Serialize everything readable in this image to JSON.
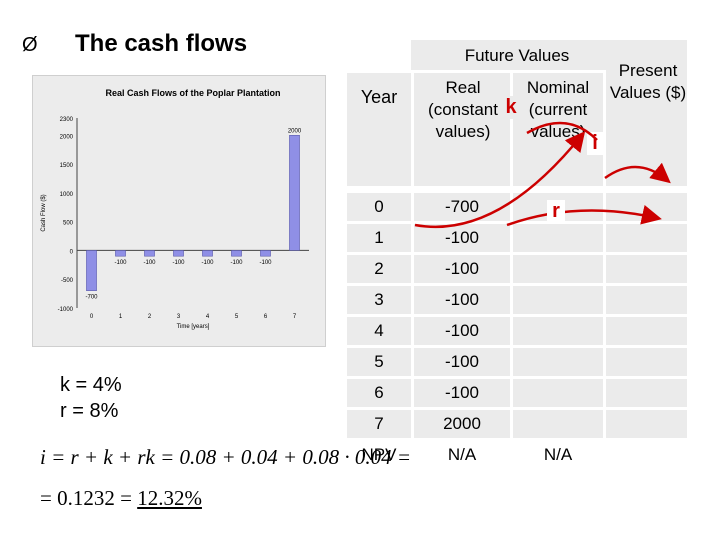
{
  "slide": {
    "bullet": "Ø",
    "title": "The cash flows",
    "k_label": "k = 4%",
    "r_label": "r = 8%"
  },
  "table": {
    "future_values_header": "Future Values",
    "present_values_header": "Present Values ($)",
    "col_year": "Year",
    "col_real": "Real (constant values)",
    "col_nominal": "Nominal (current values)",
    "arrow_k": "k",
    "arrow_i": "i",
    "arrow_r": "r",
    "rows": [
      {
        "year": "0",
        "real": "-700",
        "nominal": "",
        "pv": ""
      },
      {
        "year": "1",
        "real": "-100",
        "nominal": "",
        "pv": ""
      },
      {
        "year": "2",
        "real": "-100",
        "nominal": "",
        "pv": ""
      },
      {
        "year": "3",
        "real": "-100",
        "nominal": "",
        "pv": ""
      },
      {
        "year": "4",
        "real": "-100",
        "nominal": "",
        "pv": ""
      },
      {
        "year": "5",
        "real": "-100",
        "nominal": "",
        "pv": ""
      },
      {
        "year": "6",
        "real": "-100",
        "nominal": "",
        "pv": ""
      },
      {
        "year": "7",
        "real": "2000",
        "nominal": "",
        "pv": ""
      },
      {
        "year": "NPV",
        "real": "N/A",
        "nominal": "N/A",
        "pv": ""
      }
    ]
  },
  "formula": {
    "line1": "i = r + k + rk = 0.08 + 0.04 + 0.08 · 0.04 =",
    "line2_prefix": "= 0.1232 = ",
    "line2_result": "12.32%"
  },
  "chart_data": {
    "type": "bar",
    "title": "Real Cash Flows of the Poplar Plantation",
    "xlabel": "Time [years]",
    "ylabel": "Cash Flow ($)",
    "categories": [
      "0",
      "1",
      "2",
      "3",
      "4",
      "5",
      "6",
      "7"
    ],
    "values": [
      -700,
      -100,
      -100,
      -100,
      -100,
      -100,
      -100,
      2000
    ],
    "data_labels": [
      "-700",
      "-100",
      "-100",
      "-100",
      "-100",
      "-100",
      "-100",
      "2000"
    ],
    "ylim": [
      -1000,
      2300
    ],
    "yticks": [
      "-1000",
      "-500",
      "0",
      "500",
      "1000",
      "1500",
      "2000",
      "2300"
    ],
    "bar_color": "#8f8fe6",
    "grid": false,
    "legend": "none"
  }
}
